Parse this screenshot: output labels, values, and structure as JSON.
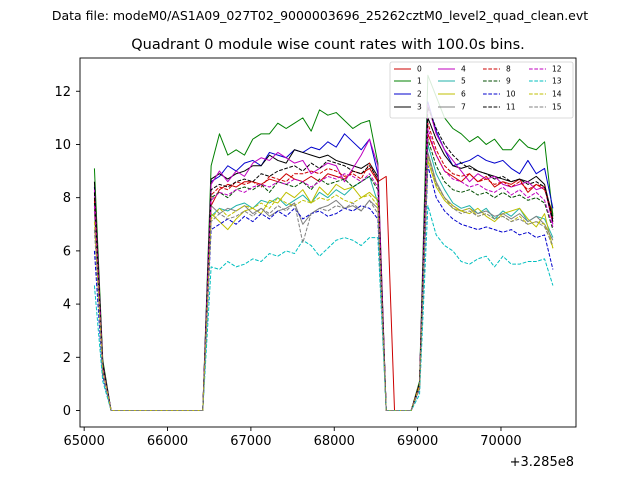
{
  "figure": {
    "suptitle": "Data file: modeM0/AS1A09_027T02_9000003696_25262cztM0_level2_quad_clean.evt",
    "title": "Quadrant 0 module wise count rates with 100.0s bins.",
    "x_offset_label": "+3.285e8"
  },
  "chart_data": {
    "type": "line",
    "title": "Quadrant 0 module wise count rates with 100.0s bins.",
    "xlabel": "",
    "ylabel": "",
    "xlim": [
      64950,
      70900
    ],
    "ylim": [
      -0.62,
      13.25
    ],
    "x_ticks": [
      65000,
      66000,
      67000,
      68000,
      69000,
      70000
    ],
    "x_tick_labels": [
      "65000",
      "66000",
      "67000",
      "68000",
      "69000",
      "70000"
    ],
    "y_ticks": [
      0,
      2,
      4,
      6,
      8,
      10,
      12
    ],
    "y_tick_labels": [
      "0",
      "2",
      "4",
      "6",
      "8",
      "10",
      "12"
    ],
    "grid": false,
    "legend": {
      "placement": "top-right",
      "columns": 4
    },
    "x": [
      65123,
      65223,
      65323,
      65423,
      65523,
      65623,
      65723,
      65823,
      65923,
      66023,
      66123,
      66223,
      66323,
      66423,
      66523,
      66623,
      66723,
      66823,
      66923,
      67023,
      67123,
      67223,
      67323,
      67423,
      67523,
      67623,
      67723,
      67823,
      67923,
      68023,
      68123,
      68223,
      68323,
      68423,
      68523,
      68623,
      68723,
      68823,
      68923,
      69023,
      69123,
      69223,
      69323,
      69423,
      69523,
      69623,
      69723,
      69823,
      69923,
      70023,
      70123,
      70223,
      70323,
      70423,
      70523,
      70623
    ],
    "series": [
      {
        "name": "0",
        "color": "#cc0000",
        "dash": "solid",
        "values": [
          8.0,
          1.6,
          0,
          0,
          0,
          0,
          0,
          0,
          0,
          0,
          0,
          0,
          0,
          0,
          7.7,
          8.3,
          8.5,
          8.4,
          8.6,
          8.6,
          8.5,
          8.7,
          8.6,
          8.9,
          8.7,
          8.6,
          8.8,
          8.6,
          8.9,
          8.8,
          8.7,
          9.0,
          8.9,
          9.1,
          8.6,
          8.8,
          0,
          0,
          0,
          1.0,
          10.4,
          9.6,
          9.0,
          8.8,
          8.6,
          8.9,
          8.6,
          8.8,
          8.4,
          8.6,
          8.5,
          8.7,
          8.2,
          8.5,
          8.3,
          7.4
        ]
      },
      {
        "name": "1",
        "color": "#008000",
        "dash": "solid",
        "values": [
          9.1,
          1.9,
          0,
          0,
          0,
          0,
          0,
          0,
          0,
          0,
          0,
          0,
          0,
          0,
          9.2,
          10.4,
          9.6,
          9.8,
          9.6,
          10.2,
          10.4,
          10.4,
          10.8,
          10.6,
          10.8,
          11.0,
          10.5,
          11.3,
          11.1,
          11.2,
          10.9,
          10.6,
          10.8,
          10.9,
          9.3,
          0,
          0,
          0,
          0,
          1.1,
          12.6,
          11.8,
          11.0,
          10.6,
          10.4,
          10.1,
          10.3,
          10.0,
          10.2,
          9.8,
          9.8,
          10.2,
          9.9,
          9.8,
          10.1,
          7.3
        ]
      },
      {
        "name": "2",
        "color": "#0000cc",
        "dash": "solid",
        "values": [
          8.4,
          1.7,
          0,
          0,
          0,
          0,
          0,
          0,
          0,
          0,
          0,
          0,
          0,
          0,
          8.6,
          8.8,
          9.2,
          9.0,
          9.3,
          9.4,
          9.2,
          9.7,
          9.6,
          9.5,
          9.8,
          9.7,
          9.9,
          9.8,
          10.1,
          9.9,
          10.4,
          10.1,
          9.8,
          10.2,
          8.9,
          0,
          0,
          0,
          0,
          1.0,
          11.6,
          10.5,
          9.8,
          9.2,
          9.3,
          9.4,
          9.6,
          9.4,
          9.3,
          9.4,
          9.1,
          8.9,
          9.4,
          8.9,
          9.1,
          7.6
        ]
      },
      {
        "name": "3",
        "color": "#000000",
        "dash": "solid",
        "values": [
          8.6,
          1.8,
          0,
          0,
          0,
          0,
          0,
          0,
          0,
          0,
          0,
          0,
          0,
          0,
          8.7,
          8.9,
          8.7,
          8.9,
          9.0,
          9.2,
          9.2,
          9.6,
          9.4,
          9.3,
          9.8,
          9.7,
          9.6,
          9.5,
          9.6,
          9.4,
          9.3,
          9.2,
          9.1,
          9.3,
          8.8,
          0,
          0,
          0,
          0,
          1.0,
          11.0,
          10.2,
          9.6,
          9.2,
          9.1,
          9.2,
          9.0,
          8.9,
          8.8,
          8.7,
          8.6,
          8.7,
          8.6,
          8.8,
          8.5,
          7.2
        ]
      },
      {
        "name": "4",
        "color": "#bf00bf",
        "dash": "solid",
        "values": [
          8.3,
          1.7,
          0,
          0,
          0,
          0,
          0,
          0,
          0,
          0,
          0,
          0,
          0,
          0,
          8.5,
          9.0,
          8.6,
          9.0,
          8.8,
          9.3,
          9.5,
          9.4,
          9.7,
          9.5,
          9.3,
          9.4,
          8.9,
          9.1,
          9.3,
          9.2,
          8.6,
          9.1,
          9.6,
          10.2,
          9.2,
          0,
          0,
          0,
          0,
          1.0,
          11.5,
          10.4,
          9.8,
          9.4,
          9.0,
          8.6,
          8.9,
          8.7,
          8.8,
          8.5,
          8.4,
          8.5,
          8.6,
          8.3,
          8.4,
          7.0
        ]
      },
      {
        "name": "5",
        "color": "#20b2aa",
        "dash": "solid",
        "values": [
          7.7,
          1.5,
          0,
          0,
          0,
          0,
          0,
          0,
          0,
          0,
          0,
          0,
          0,
          0,
          7.3,
          7.6,
          7.5,
          7.7,
          7.8,
          7.6,
          7.9,
          7.8,
          8.0,
          7.7,
          7.9,
          8.1,
          7.8,
          8.2,
          8.0,
          8.3,
          8.1,
          8.4,
          8.6,
          8.8,
          7.8,
          0,
          0,
          0,
          0,
          0.9,
          10.0,
          8.9,
          8.3,
          7.8,
          7.6,
          7.7,
          7.4,
          7.6,
          7.2,
          7.5,
          7.3,
          7.6,
          7.1,
          7.3,
          7.2,
          6.5
        ]
      },
      {
        "name": "6",
        "color": "#bfbf00",
        "dash": "solid",
        "values": [
          7.6,
          1.5,
          0,
          0,
          0,
          0,
          0,
          0,
          0,
          0,
          0,
          0,
          0,
          0,
          7.4,
          7.1,
          6.8,
          7.2,
          7.5,
          7.6,
          7.4,
          7.9,
          7.8,
          8.2,
          8.0,
          8.3,
          7.8,
          8.4,
          8.1,
          8.5,
          8.3,
          8.4,
          8.0,
          8.2,
          7.9,
          0,
          0,
          0,
          0,
          0.9,
          9.4,
          8.4,
          7.9,
          7.6,
          7.5,
          7.4,
          7.6,
          7.3,
          7.1,
          7.4,
          7.5,
          7.6,
          7.2,
          6.9,
          7.4,
          6.1
        ]
      },
      {
        "name": "7",
        "color": "#808080",
        "dash": "solid",
        "values": [
          7.5,
          1.5,
          0,
          0,
          0,
          0,
          0,
          0,
          0,
          0,
          0,
          0,
          0,
          0,
          7.7,
          7.4,
          7.6,
          7.5,
          7.7,
          7.4,
          7.6,
          7.3,
          7.5,
          7.6,
          7.8,
          7.0,
          7.4,
          7.6,
          7.7,
          7.9,
          7.6,
          7.7,
          7.5,
          7.9,
          7.6,
          0,
          0,
          0,
          0,
          0.9,
          9.7,
          8.6,
          8.0,
          7.7,
          7.5,
          7.6,
          7.4,
          7.5,
          7.3,
          7.4,
          7.2,
          7.4,
          7.1,
          7.3,
          7.0,
          6.4
        ]
      },
      {
        "name": "8",
        "color": "#cc0000",
        "dash": "dashed",
        "values": [
          7.9,
          1.6,
          0,
          0,
          0,
          0,
          0,
          0,
          0,
          0,
          0,
          0,
          0,
          0,
          8.1,
          8.4,
          8.3,
          8.6,
          8.5,
          8.6,
          8.4,
          8.8,
          8.7,
          8.6,
          8.9,
          8.9,
          9.0,
          8.9,
          9.1,
          9.0,
          8.8,
          8.9,
          8.7,
          9.3,
          8.6,
          0,
          0,
          0,
          0,
          1.0,
          10.8,
          9.8,
          9.2,
          8.9,
          8.8,
          8.9,
          8.6,
          8.7,
          8.5,
          8.6,
          8.4,
          8.6,
          8.3,
          8.5,
          8.4,
          7.1
        ]
      },
      {
        "name": "9",
        "color": "#004d00",
        "dash": "dashed",
        "values": [
          7.8,
          1.6,
          0,
          0,
          0,
          0,
          0,
          0,
          0,
          0,
          0,
          0,
          0,
          0,
          8.0,
          8.2,
          8.0,
          8.3,
          8.4,
          8.3,
          8.5,
          8.2,
          8.6,
          8.5,
          8.4,
          8.6,
          8.3,
          8.7,
          8.5,
          8.6,
          8.7,
          8.4,
          8.6,
          8.8,
          8.3,
          0,
          0,
          0,
          0,
          0.9,
          10.2,
          9.2,
          8.6,
          8.3,
          8.2,
          8.3,
          8.1,
          8.2,
          8.0,
          8.2,
          8.0,
          8.1,
          7.9,
          8.0,
          7.8,
          6.8
        ]
      },
      {
        "name": "10",
        "color": "#0000cc",
        "dash": "dashed",
        "values": [
          6.0,
          1.3,
          0,
          0,
          0,
          0,
          0,
          0,
          0,
          0,
          0,
          0,
          0,
          0,
          6.8,
          7.0,
          7.2,
          7.0,
          7.3,
          7.1,
          7.4,
          7.2,
          7.5,
          7.3,
          7.6,
          7.2,
          7.4,
          7.5,
          7.3,
          7.4,
          7.6,
          7.5,
          7.7,
          7.6,
          7.2,
          0,
          0,
          0,
          0,
          0.8,
          9.2,
          8.0,
          7.5,
          7.2,
          7.0,
          6.9,
          6.8,
          6.9,
          6.8,
          6.7,
          6.8,
          6.6,
          6.7,
          6.5,
          6.6,
          5.3
        ]
      },
      {
        "name": "11",
        "color": "#000000",
        "dash": "dashed",
        "values": [
          8.2,
          1.7,
          0,
          0,
          0,
          0,
          0,
          0,
          0,
          0,
          0,
          0,
          0,
          0,
          8.3,
          8.5,
          8.4,
          8.6,
          8.7,
          8.6,
          8.9,
          8.8,
          9.0,
          9.1,
          9.2,
          9.0,
          9.3,
          9.1,
          9.4,
          9.3,
          9.2,
          9.0,
          8.9,
          9.2,
          8.7,
          0,
          0,
          0,
          0,
          1.0,
          11.4,
          10.6,
          10.0,
          9.6,
          9.3,
          9.1,
          9.0,
          8.9,
          8.7,
          8.8,
          8.6,
          8.7,
          8.5,
          8.6,
          8.4,
          7.1
        ]
      },
      {
        "name": "12",
        "color": "#bf00bf",
        "dash": "dashed",
        "values": [
          7.7,
          1.6,
          0,
          0,
          0,
          0,
          0,
          0,
          0,
          0,
          0,
          0,
          0,
          0,
          7.9,
          8.2,
          8.1,
          8.3,
          8.2,
          8.4,
          8.5,
          8.4,
          8.6,
          8.5,
          8.7,
          8.6,
          8.4,
          8.6,
          8.8,
          8.7,
          8.9,
          8.8,
          8.6,
          8.9,
          8.4,
          0,
          0,
          0,
          0,
          0.9,
          10.6,
          9.6,
          9.0,
          8.7,
          8.6,
          8.4,
          8.5,
          8.3,
          8.2,
          8.4,
          8.1,
          8.3,
          8.0,
          8.2,
          7.9,
          6.9
        ]
      },
      {
        "name": "13",
        "color": "#00bfbf",
        "dash": "dashed",
        "values": [
          4.7,
          1.1,
          0,
          0,
          0,
          0,
          0,
          0,
          0,
          0,
          0,
          0,
          0,
          0,
          5.4,
          5.3,
          5.6,
          5.4,
          5.5,
          5.7,
          5.6,
          5.9,
          5.8,
          6.0,
          5.9,
          6.4,
          6.2,
          5.8,
          6.1,
          6.4,
          6.5,
          6.4,
          6.2,
          6.5,
          6.5,
          0,
          0,
          0,
          0,
          0.6,
          7.7,
          6.6,
          6.2,
          6.0,
          5.6,
          5.5,
          5.7,
          5.8,
          5.4,
          5.8,
          5.5,
          5.5,
          5.6,
          5.6,
          5.7,
          4.7
        ]
      },
      {
        "name": "14",
        "color": "#bfbf00",
        "dash": "dashed",
        "values": [
          7.1,
          1.5,
          0,
          0,
          0,
          0,
          0,
          0,
          0,
          0,
          0,
          0,
          0,
          0,
          7.2,
          7.6,
          7.3,
          7.5,
          7.7,
          7.6,
          7.8,
          7.6,
          8.0,
          7.8,
          7.7,
          7.9,
          7.8,
          8.0,
          7.9,
          8.1,
          7.9,
          7.8,
          8.0,
          8.1,
          7.7,
          0,
          0,
          0,
          0,
          0.9,
          9.6,
          8.5,
          8.0,
          7.7,
          7.5,
          7.6,
          7.3,
          7.4,
          7.2,
          7.3,
          7.1,
          7.3,
          7.0,
          7.1,
          7.0,
          6.1
        ]
      },
      {
        "name": "15",
        "color": "#808080",
        "dash": "dashed",
        "values": [
          6.8,
          1.4,
          0,
          0,
          0,
          0,
          0,
          0,
          0,
          0,
          0,
          0,
          0,
          0,
          7.1,
          7.4,
          7.2,
          7.3,
          7.5,
          7.3,
          7.6,
          7.4,
          7.7,
          7.5,
          7.8,
          6.3,
          7.4,
          7.6,
          7.5,
          7.7,
          7.6,
          7.8,
          7.5,
          7.9,
          7.4,
          0,
          0,
          0,
          0,
          0.8,
          9.6,
          8.5,
          8.0,
          7.6,
          7.4,
          7.5,
          7.3,
          7.4,
          7.2,
          7.3,
          7.1,
          7.2,
          7.0,
          7.1,
          6.9,
          6.2
        ]
      }
    ]
  }
}
